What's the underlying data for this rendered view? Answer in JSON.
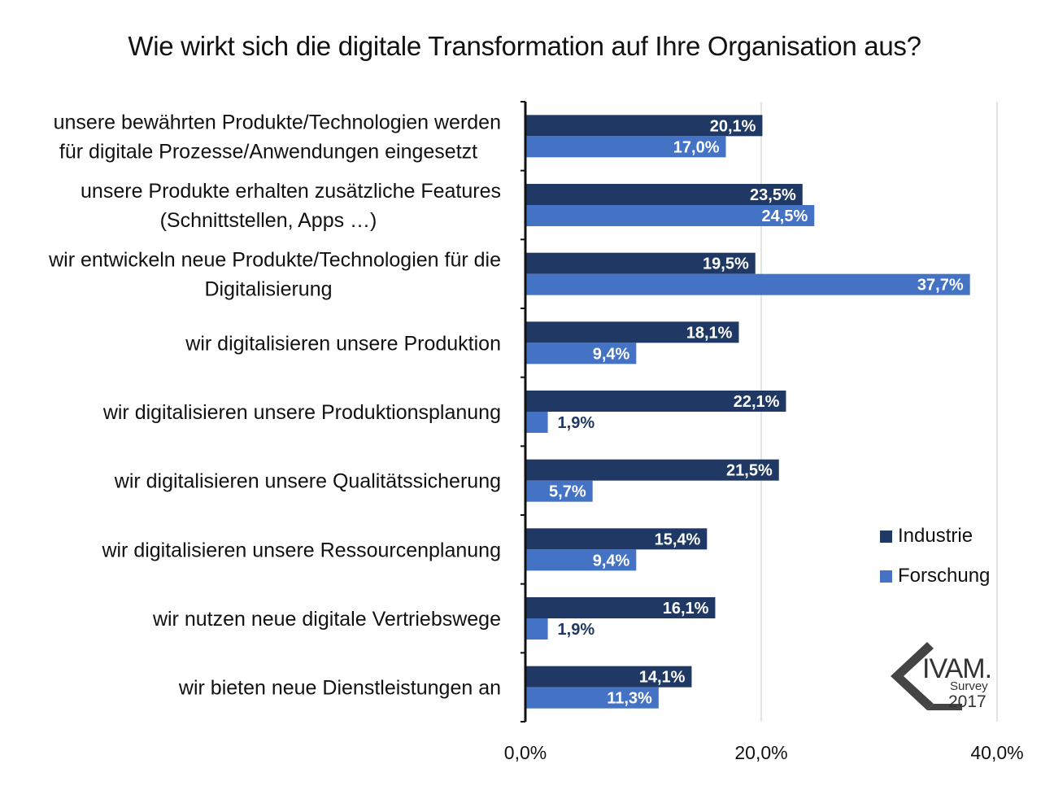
{
  "chart_data": {
    "type": "bar",
    "orientation": "horizontal",
    "title": "Wie wirkt sich die digitale Transformation auf Ihre Organisation aus?",
    "categories": [
      [
        "unsere bewährten Produkte/Technologien werden",
        "für digitale Prozesse/Anwendungen eingesetzt"
      ],
      [
        "unsere Produkte erhalten zusätzliche Features",
        "(Schnittstellen, Apps …)"
      ],
      [
        "wir entwickeln neue Produkte/Technologien für die",
        "Digitalisierung"
      ],
      [
        "wir digitalisieren unsere Produktion"
      ],
      [
        "wir digitalisieren unsere Produktionsplanung"
      ],
      [
        "wir digitalisieren unsere Qualitätssicherung"
      ],
      [
        "wir digitalisieren unsere Ressourcenplanung"
      ],
      [
        "wir nutzen neue digitale Vertriebswege"
      ],
      [
        "wir bieten neue Dienstleistungen an"
      ]
    ],
    "series": [
      {
        "name": "Industrie",
        "color": "#1f3864",
        "values": [
          20.1,
          23.5,
          19.5,
          18.1,
          22.1,
          21.5,
          15.4,
          16.1,
          14.1
        ],
        "labels": [
          "20,1%",
          "23,5%",
          "19,5%",
          "18,1%",
          "22,1%",
          "21,5%",
          "15,4%",
          "16,1%",
          "14,1%"
        ]
      },
      {
        "name": "Forschung",
        "color": "#4472c4",
        "values": [
          17.0,
          24.5,
          37.7,
          9.4,
          1.9,
          5.7,
          9.4,
          1.9,
          11.3
        ],
        "labels": [
          "17,0%",
          "24,5%",
          "37,7%",
          "9,4%",
          "1,9%",
          "5,7%",
          "9,4%",
          "1,9%",
          "11,3%"
        ]
      }
    ],
    "xlim": [
      0,
      40
    ],
    "xticks": [
      0,
      20,
      40
    ],
    "xtick_labels": [
      "0,0%",
      "20,0%",
      "40,0%"
    ],
    "grid": "vertical",
    "legend_position": "right"
  },
  "logo": {
    "name": "IVAM.",
    "sub": "Survey",
    "year": "2017"
  }
}
